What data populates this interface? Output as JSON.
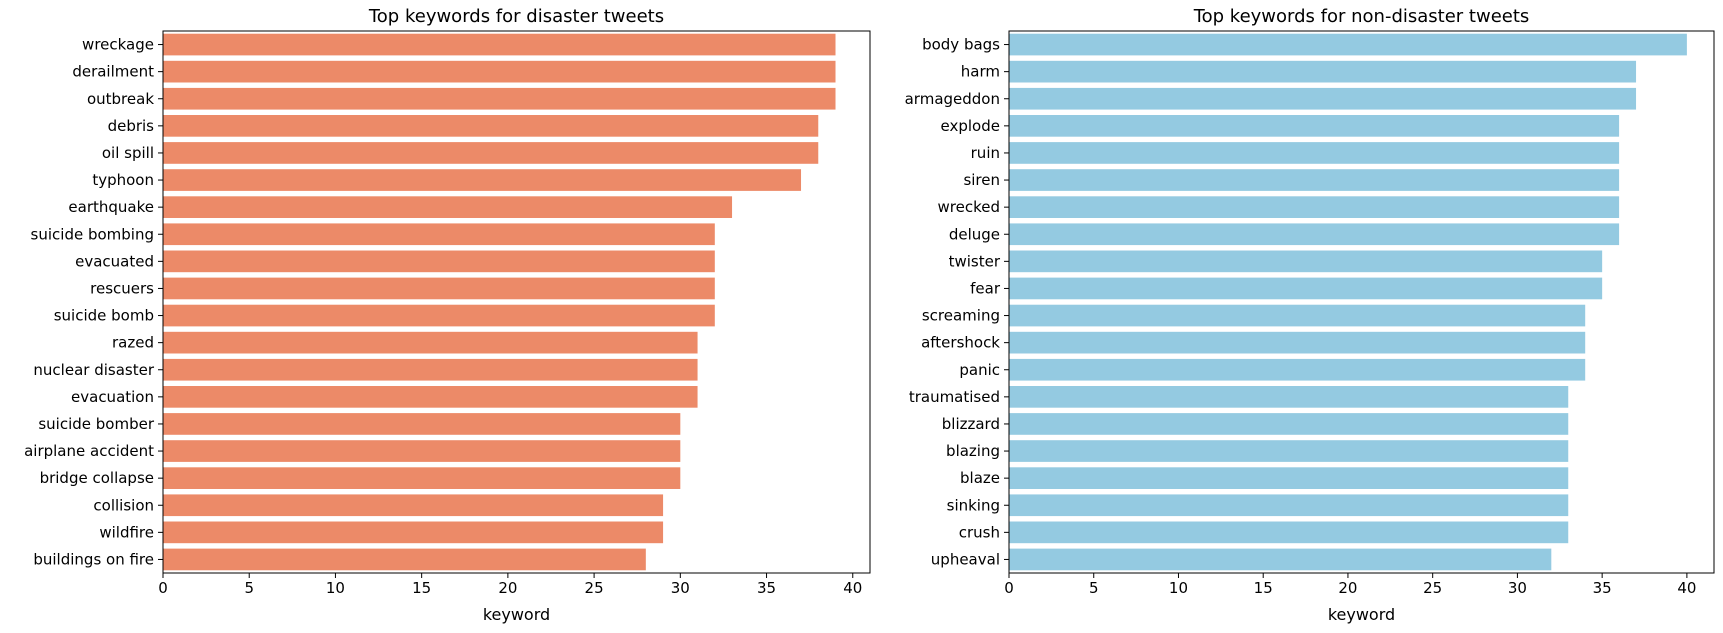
{
  "chart_data": [
    {
      "type": "bar",
      "orientation": "horizontal",
      "title": "Top keywords for disaster tweets",
      "xlabel": "keyword",
      "ylabel": "",
      "xlim": [
        0,
        41
      ],
      "xticks": [
        0,
        5,
        10,
        15,
        20,
        25,
        30,
        35,
        40
      ],
      "grid": false,
      "color": "#EC8A68",
      "categories": [
        "wreckage",
        "derailment",
        "outbreak",
        "debris",
        "oil spill",
        "typhoon",
        "earthquake",
        "suicide bombing",
        "evacuated",
        "rescuers",
        "suicide bomb",
        "razed",
        "nuclear disaster",
        "evacuation",
        "suicide bomber",
        "airplane accident",
        "bridge collapse",
        "collision",
        "wildfire",
        "buildings on fire"
      ],
      "values": [
        39,
        39,
        39,
        38,
        38,
        37,
        33,
        32,
        32,
        32,
        32,
        31,
        31,
        31,
        30,
        30,
        30,
        29,
        29,
        28
      ]
    },
    {
      "type": "bar",
      "orientation": "horizontal",
      "title": "Top keywords for non-disaster tweets",
      "xlabel": "keyword",
      "ylabel": "",
      "xlim": [
        0,
        41.6
      ],
      "xticks": [
        0,
        5,
        10,
        15,
        20,
        25,
        30,
        35,
        40
      ],
      "grid": false,
      "color": "#94CAE1",
      "categories": [
        "body bags",
        "harm",
        "armageddon",
        "explode",
        "ruin",
        "siren",
        "wrecked",
        "deluge",
        "twister",
        "fear",
        "screaming",
        "aftershock",
        "panic",
        "traumatised",
        "blizzard",
        "blazing",
        "blaze",
        "sinking",
        "crush",
        "upheaval"
      ],
      "values": [
        40,
        37,
        37,
        36,
        36,
        36,
        36,
        36,
        35,
        35,
        34,
        34,
        34,
        33,
        33,
        33,
        33,
        33,
        33,
        32
      ]
    }
  ]
}
